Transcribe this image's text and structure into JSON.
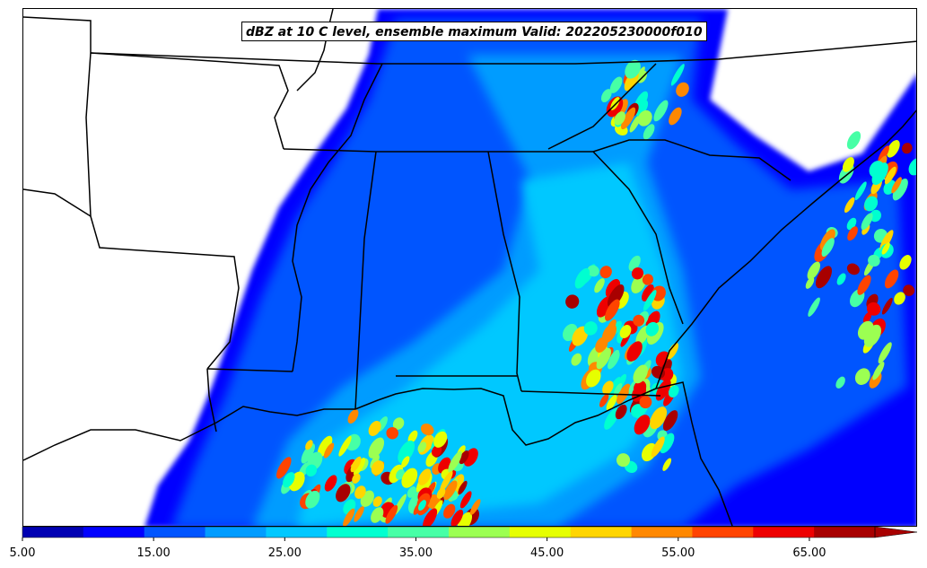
{
  "title": "dBZ at 10 C level, ensemble maximum Valid: 202205230000f010",
  "colorbar": {
    "tick_labels": [
      "5.00",
      "15.00",
      "25.00",
      "35.00",
      "45.00",
      "55.00",
      "65.00"
    ],
    "levels": [
      5,
      10,
      15,
      20,
      25,
      30,
      35,
      40,
      45,
      50,
      55,
      60,
      65,
      70
    ],
    "colors": [
      "#0000b3",
      "#0000ff",
      "#0055ff",
      "#009cff",
      "#00c8ff",
      "#00ffd0",
      "#47ffa6",
      "#9cff52",
      "#e6ff00",
      "#ffd500",
      "#ff8800",
      "#ff4400",
      "#ee0000",
      "#a80000"
    ],
    "extend": "max"
  },
  "map": {
    "region": "Southeastern United States",
    "overlay": "state boundaries and coastlines"
  }
}
